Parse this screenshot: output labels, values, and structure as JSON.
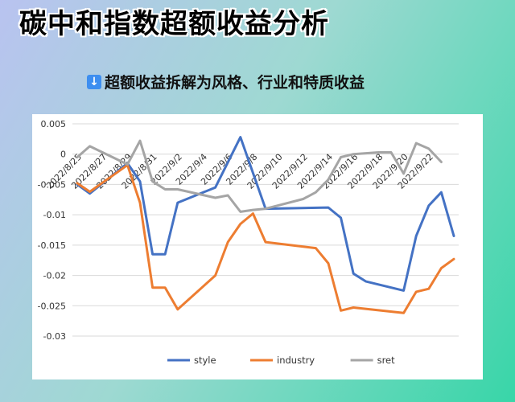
{
  "header": {
    "title": "碳中和指数超额收益分析",
    "subtitle": "超额收益拆解为风格、行业和特质收益",
    "subtitle_icon": "down-arrow-icon"
  },
  "colors": {
    "style": "#4472c4",
    "industry": "#ed7d31",
    "sret": "#a5a5a5",
    "grid": "#d9d9d9"
  },
  "chart_data": {
    "type": "line",
    "title": "",
    "xlabel": "",
    "ylabel": "",
    "ylim": [
      -0.03,
      0.005
    ],
    "y_ticks": [
      "0.005",
      "0",
      "-0.005",
      "-0.01",
      "-0.015",
      "-0.02",
      "-0.025",
      "-0.03"
    ],
    "y_tick_values": [
      0.005,
      0,
      -0.005,
      -0.01,
      -0.015,
      -0.02,
      -0.025,
      -0.03
    ],
    "x": [
      "2022/8/25",
      "2022/8/26",
      "2022/8/27",
      "2022/8/28",
      "2022/8/29",
      "2022/8/30",
      "2022/8/31",
      "2022/9/1",
      "2022/9/2",
      "2022/9/3",
      "2022/9/4",
      "2022/9/5",
      "2022/9/6",
      "2022/9/7",
      "2022/9/8",
      "2022/9/9",
      "2022/9/10",
      "2022/9/11",
      "2022/9/12",
      "2022/9/13",
      "2022/9/14",
      "2022/9/15",
      "2022/9/16",
      "2022/9/17",
      "2022/9/18",
      "2022/9/19",
      "2022/9/20",
      "2022/9/21",
      "2022/9/22",
      "2022/9/23",
      "2022/9/24"
    ],
    "x_tick_labels": [
      "2022/8/25",
      "2022/8/27",
      "2022/8/29",
      "2022/8/31",
      "2022/9/2",
      "2022/9/4",
      "2022/9/6",
      "2022/9/8",
      "2022/9/10",
      "2022/9/12",
      "2022/9/14",
      "2022/9/16",
      "2022/9/18",
      "2022/9/20",
      "2022/9/22"
    ],
    "x_tick_label_indices": [
      0,
      2,
      4,
      6,
      8,
      10,
      12,
      14,
      16,
      18,
      20,
      22,
      24,
      26,
      28
    ],
    "series_points": [
      {
        "name": "style",
        "points": [
          [
            0,
            -0.005
          ],
          [
            1,
            -0.0065
          ],
          [
            4,
            -0.0015
          ],
          [
            5,
            -0.0045
          ],
          [
            6,
            -0.0165
          ],
          [
            7,
            -0.0165
          ],
          [
            8,
            -0.008
          ],
          [
            11,
            -0.0055
          ],
          [
            13,
            0.0028
          ],
          [
            15,
            -0.009
          ],
          [
            20,
            -0.0088
          ],
          [
            21,
            -0.0105
          ],
          [
            22,
            -0.0197
          ],
          [
            23,
            -0.021
          ],
          [
            26,
            -0.0225
          ],
          [
            27,
            -0.0135
          ],
          [
            28,
            -0.0085
          ],
          [
            29,
            -0.0063
          ],
          [
            30,
            -0.0135
          ]
        ]
      },
      {
        "name": "industry",
        "points": [
          [
            0,
            -0.0048
          ],
          [
            1,
            -0.0062
          ],
          [
            4,
            -0.0018
          ],
          [
            5,
            -0.008
          ],
          [
            6,
            -0.022
          ],
          [
            7,
            -0.022
          ],
          [
            8,
            -0.0256
          ],
          [
            11,
            -0.02
          ],
          [
            12,
            -0.0145
          ],
          [
            13,
            -0.0115
          ],
          [
            14,
            -0.0098
          ],
          [
            15,
            -0.0145
          ],
          [
            19,
            -0.0155
          ],
          [
            20,
            -0.018
          ],
          [
            21,
            -0.0258
          ],
          [
            22,
            -0.0253
          ],
          [
            26,
            -0.0262
          ],
          [
            27,
            -0.0227
          ],
          [
            28,
            -0.0222
          ],
          [
            29,
            -0.0188
          ],
          [
            30,
            -0.0173
          ]
        ]
      },
      {
        "name": "sret",
        "points": [
          [
            0,
            -0.0005
          ],
          [
            1,
            0.0013
          ],
          [
            4,
            -0.0017
          ],
          [
            5,
            0.0022
          ],
          [
            6,
            -0.0045
          ],
          [
            7,
            -0.0058
          ],
          [
            8,
            -0.0058
          ],
          [
            11,
            -0.0072
          ],
          [
            12,
            -0.0068
          ],
          [
            13,
            -0.0095
          ],
          [
            14,
            -0.0092
          ],
          [
            15,
            -0.009
          ],
          [
            18,
            -0.0074
          ],
          [
            19,
            -0.0063
          ],
          [
            20,
            -0.0042
          ],
          [
            21,
            -0.0005
          ],
          [
            22,
            0.0
          ],
          [
            24,
            0.0003
          ],
          [
            25,
            0.0003
          ],
          [
            26,
            -0.0032
          ],
          [
            27,
            0.0018
          ],
          [
            28,
            0.0009
          ],
          [
            29,
            -0.0013
          ]
        ]
      }
    ],
    "legend": [
      "style",
      "industry",
      "sret"
    ],
    "legend_position": "bottom",
    "grid": true
  }
}
